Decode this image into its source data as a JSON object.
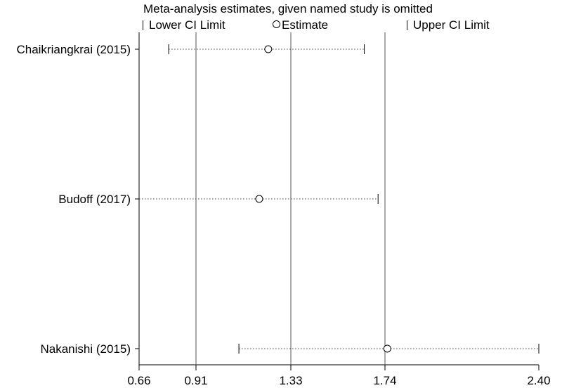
{
  "chart_data": {
    "type": "scatter",
    "title": "Meta-analysis estimates, given named study is omitted",
    "legend": {
      "lower": "Lower CI Limit",
      "estimate": "Estimate",
      "upper": "Upper CI Limit",
      "placement": "top"
    },
    "xlim": [
      0.66,
      2.4
    ],
    "x_ticks": [
      0.66,
      0.91,
      1.33,
      1.74,
      2.4
    ],
    "x_tick_labels": [
      "0.66",
      "0.91",
      "1.33",
      "1.74",
      "2.40"
    ],
    "reference_lines": [
      0.91,
      1.33,
      1.74
    ],
    "studies": [
      {
        "name": "Chaikriangkrai (2015)",
        "lower": 0.79,
        "estimate": 1.23,
        "upper": 1.65
      },
      {
        "name": "Budoff (2017)",
        "lower": 0.66,
        "estimate": 1.19,
        "upper": 1.71
      },
      {
        "name": "Nakanishi (2015)",
        "lower": 1.1,
        "estimate": 1.75,
        "upper": 2.4
      }
    ]
  }
}
